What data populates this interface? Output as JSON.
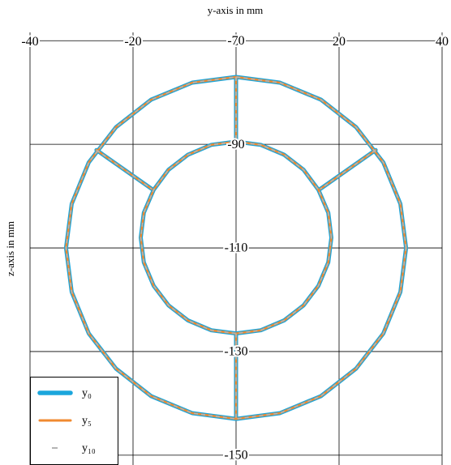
{
  "chart_data": {
    "type": "line",
    "xlabel": "y-axis in mm",
    "ylabel": "z-axis in mm",
    "xlim": [
      -40,
      40
    ],
    "xticks": [
      -40,
      -20,
      0,
      20,
      40
    ],
    "ylim": [
      -151.9,
      -68.4
    ],
    "yticks": [
      -150,
      -130,
      -110,
      -90,
      -70
    ],
    "grid": true,
    "legend": "lower left",
    "x": [
      33,
      31.9,
      28.6,
      23.3,
      16.5,
      8.5,
      0,
      -8.5,
      -16.5,
      -23.3,
      -28.6,
      -31.9,
      -33,
      -31.9,
      -28.6,
      -23.3,
      -16.5,
      -8.5,
      0,
      8.5,
      16.5,
      23.3,
      28.6,
      31.9,
      33,
      null,
      18.5,
      17.9,
      16,
      13.1,
      9.3,
      4.8,
      0,
      -4.8,
      -9.3,
      -13.1,
      -16,
      -17.9,
      -18.5,
      -17.9,
      -16,
      -13.1,
      -9.3,
      -4.8,
      0,
      4.8,
      9.3,
      13.1,
      16,
      17.9,
      18.5,
      null,
      0,
      0,
      null,
      0,
      0,
      null,
      -27.1,
      -16.4,
      null,
      27.1,
      16.4
    ],
    "series": [
      {
        "name": "y₀",
        "color": "#1ba6dc",
        "values": [
          -110,
          -101.5,
          -93.5,
          -86.7,
          -81.4,
          -78.1,
          -77,
          -78.1,
          -81.4,
          -86.7,
          -93.5,
          -101.5,
          -110,
          -118.5,
          -126.5,
          -133.3,
          -138.6,
          -141.9,
          -143,
          -141.9,
          -138.6,
          -133.3,
          -126.5,
          -118.5,
          -110,
          null,
          -108,
          -103.2,
          -98.8,
          -94.9,
          -92,
          -90.1,
          -89.5,
          -90.1,
          -92,
          -94.9,
          -98.8,
          -103.2,
          -108,
          -112.8,
          -117.3,
          -121.1,
          -124,
          -125.9,
          -126.5,
          -125.9,
          -124,
          -121.1,
          -117.3,
          -112.8,
          -108,
          null,
          -77,
          -89.5,
          null,
          -126.5,
          -143,
          null,
          -91.1,
          -98.6,
          null,
          -91.1,
          -98.6
        ]
      },
      {
        "name": "y₅",
        "color": "#f08a30",
        "values": [
          -110,
          -101.5,
          -93.5,
          -86.7,
          -81.4,
          -78.1,
          -77,
          -78.1,
          -81.4,
          -86.7,
          -93.5,
          -101.5,
          -110,
          -118.5,
          -126.5,
          -133.3,
          -138.6,
          -141.9,
          -143,
          -141.9,
          -138.6,
          -133.3,
          -126.5,
          -118.5,
          -110,
          null,
          -108,
          -103.2,
          -98.8,
          -94.9,
          -92,
          -90.1,
          -89.5,
          -90.1,
          -92,
          -94.9,
          -98.8,
          -103.2,
          -108,
          -112.8,
          -117.3,
          -121.1,
          -124,
          -125.9,
          -126.5,
          -125.9,
          -124,
          -121.1,
          -117.3,
          -112.8,
          -108,
          null,
          -77,
          -89.5,
          null,
          -126.5,
          -143,
          null,
          -91.1,
          -98.6,
          null,
          -91.1,
          -98.6
        ]
      },
      {
        "name": "y₁₀",
        "color": "#b4b4b4",
        "values": [
          -110,
          -101.5,
          -93.5,
          -86.7,
          -81.4,
          -78.1,
          -77,
          -78.1,
          -81.4,
          -86.7,
          -93.5,
          -101.5,
          -110,
          -118.5,
          -126.5,
          -133.3,
          -138.6,
          -141.9,
          -143,
          -141.9,
          -138.6,
          -133.3,
          -126.5,
          -118.5,
          -110,
          null,
          -108,
          -103.2,
          -98.8,
          -94.9,
          -92,
          -90.1,
          -89.5,
          -90.1,
          -92,
          -94.9,
          -98.8,
          -103.2,
          -108,
          -112.8,
          -117.3,
          -121.1,
          -124,
          -125.9,
          -126.5,
          -125.9,
          -124,
          -121.1,
          -117.3,
          -112.8,
          -108,
          null,
          -77,
          -89.5,
          null,
          -126.5,
          -143,
          null,
          -91.1,
          -98.6,
          null,
          -91.1,
          -98.6
        ]
      }
    ]
  }
}
